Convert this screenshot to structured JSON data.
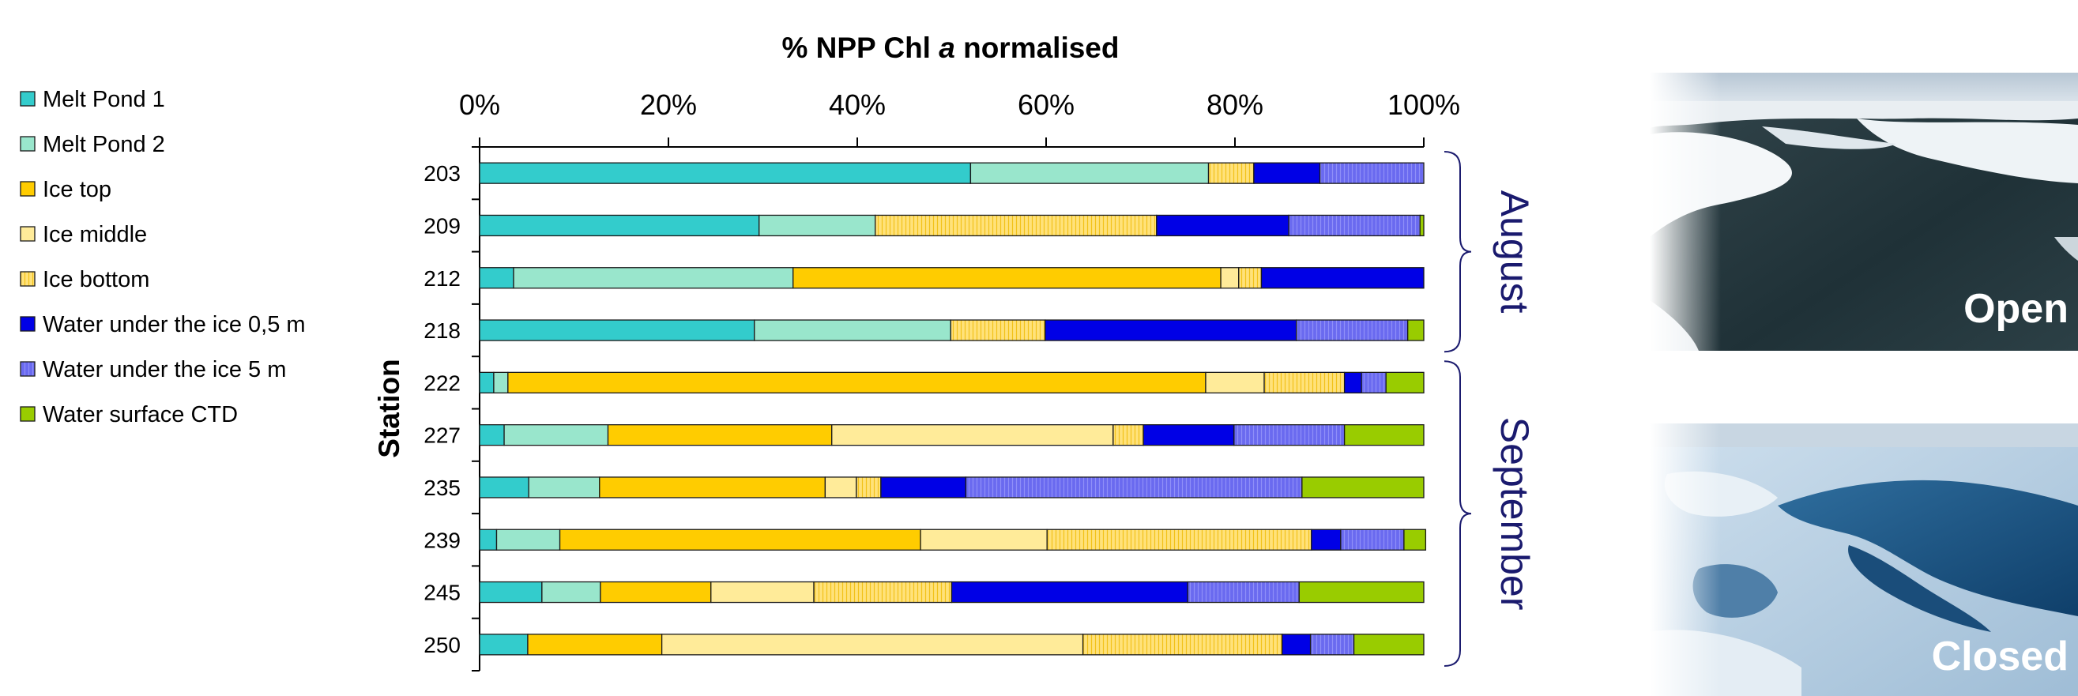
{
  "chart_data": {
    "type": "bar",
    "orientation": "horizontal",
    "stacked": true,
    "normalized": true,
    "title_parts": [
      "% NPP Chl ",
      "a",
      " normalised"
    ],
    "ylabel": "Station",
    "xlim": [
      0,
      100
    ],
    "xticks": [
      "0%",
      "20%",
      "40%",
      "60%",
      "80%",
      "100%"
    ],
    "categories": [
      "203",
      "209",
      "212",
      "218",
      "222",
      "227",
      "235",
      "239",
      "245",
      "250"
    ],
    "series": [
      {
        "name": "Melt Pond 1",
        "color": "#33cccc",
        "pattern": "solid",
        "values": [
          52.0,
          29.6,
          3.6,
          29.1,
          1.5,
          2.6,
          5.2,
          1.8,
          6.6,
          5.1
        ]
      },
      {
        "name": "Melt Pond 2",
        "color": "#99e6cc",
        "pattern": "solid",
        "values": [
          25.2,
          12.3,
          29.6,
          20.8,
          1.5,
          11.0,
          7.5,
          6.7,
          6.2,
          0.0
        ]
      },
      {
        "name": "Ice top",
        "color": "#ffcc00",
        "pattern": "solid",
        "values": [
          0.0,
          0.0,
          45.3,
          0.0,
          73.9,
          23.7,
          23.9,
          38.2,
          11.7,
          14.2
        ]
      },
      {
        "name": "Ice middle",
        "color": "#ffeb99",
        "pattern": "solid",
        "values": [
          0.0,
          0.0,
          1.9,
          0.0,
          6.2,
          29.8,
          3.3,
          13.4,
          10.9,
          44.6
        ]
      },
      {
        "name": "Ice bottom",
        "color": "#ffe066",
        "pattern": "striped",
        "values": [
          4.8,
          29.8,
          2.4,
          10.0,
          8.5,
          3.2,
          2.6,
          28.0,
          14.6,
          21.1
        ]
      },
      {
        "name": "Water under the ice 0,5 m",
        "color": "#0000e6",
        "pattern": "solid",
        "values": [
          7.0,
          14.0,
          17.2,
          26.6,
          1.8,
          9.6,
          9.0,
          3.1,
          25.0,
          3.0
        ]
      },
      {
        "name": "Water under the ice 5 m",
        "color": "#6666ee",
        "pattern": "striped",
        "values": [
          11.0,
          13.9,
          0.0,
          11.8,
          2.6,
          11.7,
          35.6,
          6.7,
          11.8,
          4.6
        ]
      },
      {
        "name": "Water surface CTD",
        "color": "#99cc00",
        "pattern": "solid",
        "values": [
          0.0,
          0.4,
          0.0,
          1.7,
          4.0,
          8.4,
          12.9,
          2.3,
          13.2,
          7.4
        ]
      }
    ],
    "groups": [
      {
        "name": "August",
        "stations": [
          "203",
          "209",
          "212",
          "218"
        ]
      },
      {
        "name": "September",
        "stations": [
          "222",
          "227",
          "235",
          "239",
          "245",
          "250"
        ]
      }
    ],
    "legend_position": "left",
    "grid": false
  },
  "photos": [
    {
      "label": "Open",
      "icon": "open-melt-pond-photo"
    },
    {
      "label": "Closed",
      "icon": "closed-melt-pond-photo"
    }
  ]
}
